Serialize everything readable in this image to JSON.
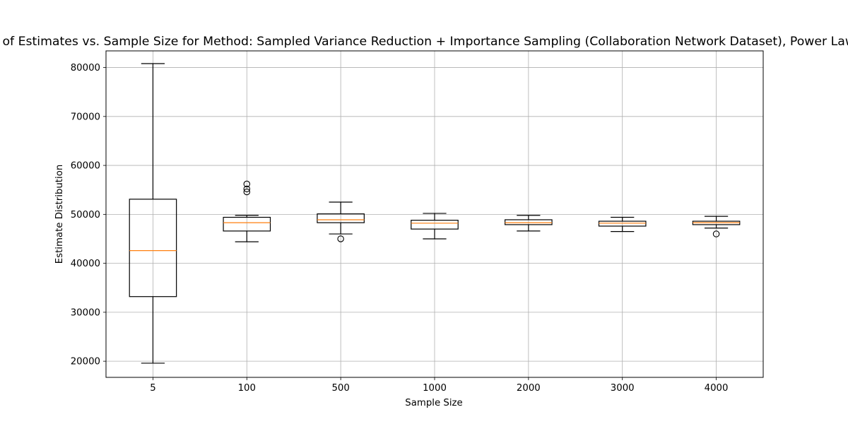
{
  "chart_data": {
    "type": "boxplot",
    "title": "Box and Whisker Plot of Estimates vs. Sample Size for Method: Sampled Variance Reduction + Importance Sampling (Collaboration Network Dataset), Power Law Degree Distribution",
    "xlabel": "Sample Size",
    "ylabel": "Estimate Distribution",
    "ylim": [
      16700,
      83400
    ],
    "yticks": [
      20000,
      30000,
      40000,
      50000,
      60000,
      70000,
      80000
    ],
    "grid": true,
    "categories": [
      "5",
      "100",
      "500",
      "1000",
      "2000",
      "3000",
      "4000"
    ],
    "boxes": [
      {
        "category": "5",
        "whislo": 19600,
        "q1": 33200,
        "med": 42600,
        "q3": 53100,
        "whishi": 80800,
        "fliers": []
      },
      {
        "category": "100",
        "whislo": 44400,
        "q1": 46600,
        "med": 48300,
        "q3": 49400,
        "whishi": 49800,
        "fliers": [
          54600,
          55200,
          56200
        ]
      },
      {
        "category": "500",
        "whislo": 46000,
        "q1": 48300,
        "med": 48900,
        "q3": 50100,
        "whishi": 52500,
        "fliers": [
          45000
        ]
      },
      {
        "category": "1000",
        "whislo": 45000,
        "q1": 47000,
        "med": 48200,
        "q3": 48800,
        "whishi": 50200,
        "fliers": []
      },
      {
        "category": "2000",
        "whislo": 46600,
        "q1": 47900,
        "med": 48300,
        "q3": 48900,
        "whishi": 49800,
        "fliers": []
      },
      {
        "category": "3000",
        "whislo": 46500,
        "q1": 47600,
        "med": 48200,
        "q3": 48600,
        "whishi": 49400,
        "fliers": []
      },
      {
        "category": "4000",
        "whislo": 47200,
        "q1": 47900,
        "med": 48300,
        "q3": 48600,
        "whishi": 49600,
        "fliers": [
          46000
        ]
      }
    ],
    "colors": {
      "box": "#000000",
      "median": "#ff7f0e",
      "grid": "#b0b0b0",
      "axes": "#000000"
    }
  }
}
